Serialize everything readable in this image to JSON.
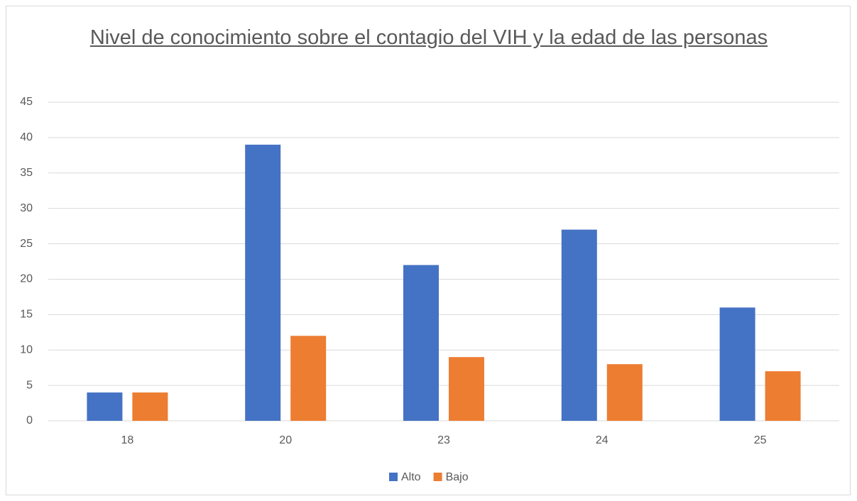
{
  "chart_data": {
    "type": "bar",
    "title": "Nivel de conocimiento sobre el contagio del VIH y la edad de las personas",
    "categories": [
      "18",
      "20",
      "23",
      "24",
      "25"
    ],
    "series": [
      {
        "name": "Alto",
        "color": "#4472c4",
        "values": [
          4,
          39,
          22,
          27,
          16
        ]
      },
      {
        "name": "Bajo",
        "color": "#ed7d31",
        "values": [
          4,
          12,
          9,
          8,
          7
        ]
      }
    ],
    "ylim": [
      0,
      45
    ],
    "yticks": [
      0,
      5,
      10,
      15,
      20,
      25,
      30,
      35,
      40,
      45
    ],
    "grid": true,
    "legend": "bottom"
  }
}
